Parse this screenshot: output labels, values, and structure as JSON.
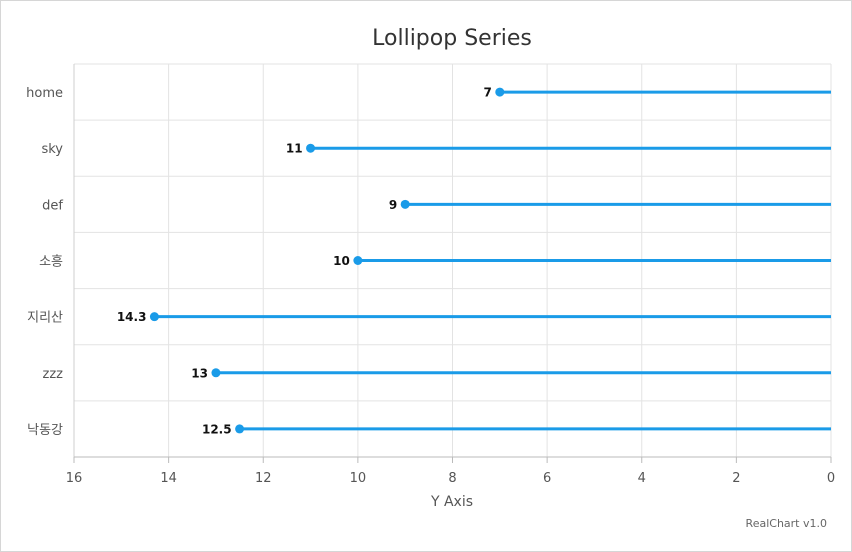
{
  "chart_data": {
    "type": "lollipop",
    "orientation": "horizontal",
    "title": "Lollipop Series",
    "categories": [
      "home",
      "sky",
      "def",
      "소흥",
      "지리산",
      "zzz",
      "낙동강"
    ],
    "values": [
      7,
      11,
      9,
      10,
      14.3,
      13,
      12.5
    ],
    "value_labels": [
      "7",
      "11",
      "9",
      "10",
      "14.3",
      "13",
      "12.5"
    ],
    "value_axis": {
      "title": "Y Axis",
      "min": 0,
      "max": 16,
      "reversed": true,
      "ticks": [
        16,
        14,
        12,
        10,
        8,
        6,
        4,
        2,
        0
      ]
    },
    "grid": true,
    "color": "#1a9be8",
    "credit": "RealChart v1.0"
  }
}
